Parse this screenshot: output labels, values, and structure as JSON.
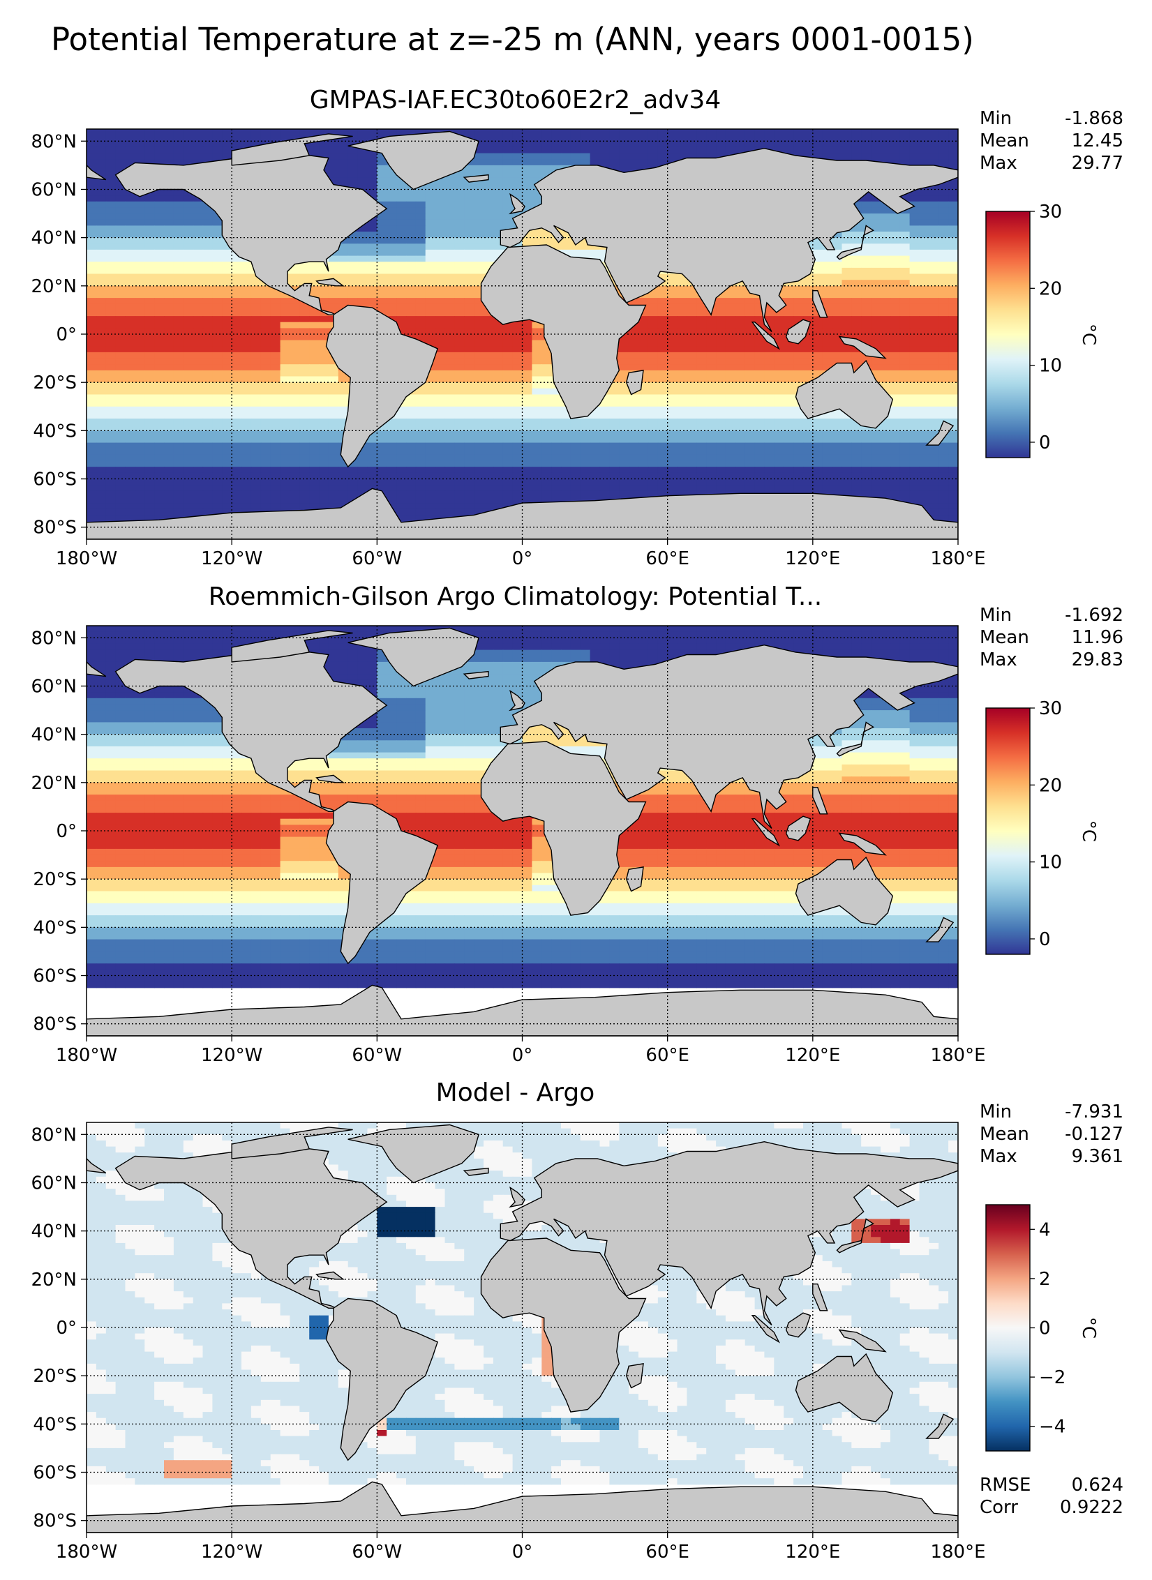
{
  "figure": {
    "title": "Potential Temperature at z=-25 m (ANN, years 0001-0015)"
  },
  "chart_data": [
    {
      "type": "heatmap",
      "title": "GMPAS-IAF.EC30to60E2r2_adv34",
      "stats": [
        {
          "label": "Min",
          "value": "-1.868"
        },
        {
          "label": "Mean",
          "value": "12.45"
        },
        {
          "label": "Max",
          "value": "29.77"
        }
      ],
      "colorbar": {
        "range": [
          -2,
          30
        ],
        "ticks": [
          "30",
          "20",
          "10",
          "0"
        ],
        "tick_values": [
          30,
          20,
          10,
          0
        ],
        "unit": "°C",
        "colormap": "RdYlBu_r"
      },
      "x_ticks": [
        "180°W",
        "120°W",
        "60°W",
        "0°",
        "60°E",
        "120°E",
        "180°E"
      ],
      "y_ticks": [
        "80°N",
        "60°N",
        "40°N",
        "20°N",
        "0°",
        "20°S",
        "40°S",
        "60°S",
        "80°S"
      ],
      "xlim": [
        -180,
        180
      ],
      "ylim": [
        -85,
        85
      ],
      "grid": true,
      "field": "sst",
      "missing_data_south_of": null
    },
    {
      "type": "heatmap",
      "title": "Roemmich-Gilson Argo Climatology: Potential T...",
      "stats": [
        {
          "label": "Min",
          "value": "-1.692"
        },
        {
          "label": "Mean",
          "value": "11.96"
        },
        {
          "label": "Max",
          "value": "29.83"
        }
      ],
      "colorbar": {
        "range": [
          -2,
          30
        ],
        "ticks": [
          "30",
          "20",
          "10",
          "0"
        ],
        "tick_values": [
          30,
          20,
          10,
          0
        ],
        "unit": "°C",
        "colormap": "RdYlBu_r"
      },
      "x_ticks": [
        "180°W",
        "120°W",
        "60°W",
        "0°",
        "60°E",
        "120°E",
        "180°E"
      ],
      "y_ticks": [
        "80°N",
        "60°N",
        "40°N",
        "20°N",
        "0°",
        "20°S",
        "40°S",
        "60°S",
        "80°S"
      ],
      "xlim": [
        -180,
        180
      ],
      "ylim": [
        -85,
        85
      ],
      "grid": true,
      "field": "sst",
      "missing_data_south_of": -65
    },
    {
      "type": "heatmap",
      "title": "Model - Argo",
      "stats": [
        {
          "label": "Min",
          "value": "-7.931"
        },
        {
          "label": "Mean",
          "value": "-0.127"
        },
        {
          "label": "Max",
          "value": "9.361"
        }
      ],
      "extra_stats": [
        {
          "label": "RMSE",
          "value": "0.624"
        },
        {
          "label": "Corr",
          "value": "0.9222"
        }
      ],
      "colorbar": {
        "range": [
          -5,
          5
        ],
        "ticks": [
          "4",
          "2",
          "0",
          "−2",
          "−4"
        ],
        "tick_values": [
          4,
          2,
          0,
          -2,
          -4
        ],
        "unit": "°C",
        "colormap": "RdBu_r"
      },
      "x_ticks": [
        "180°W",
        "120°W",
        "60°W",
        "0°",
        "60°E",
        "120°E",
        "180°E"
      ],
      "y_ticks": [
        "80°N",
        "60°N",
        "40°N",
        "20°N",
        "0°",
        "20°S",
        "40°S",
        "60°S",
        "80°S"
      ],
      "xlim": [
        -180,
        180
      ],
      "ylim": [
        -85,
        85
      ],
      "grid": true,
      "field": "diff",
      "missing_data_south_of": -65
    }
  ],
  "colors": {
    "land": "#c8c8c8",
    "missing": "#ffffff"
  }
}
